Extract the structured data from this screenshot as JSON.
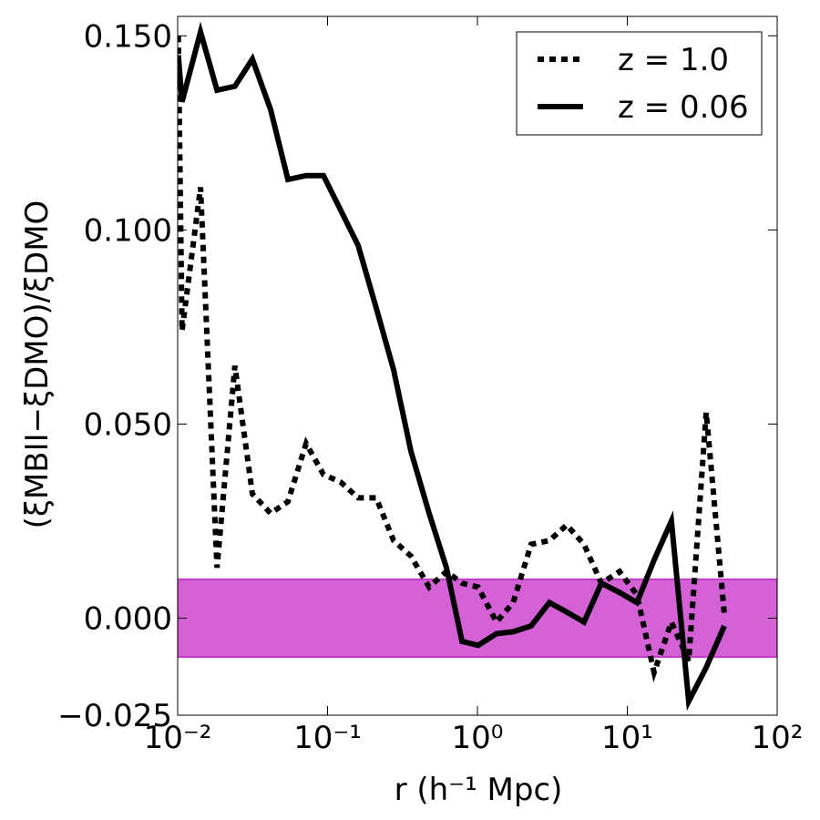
{
  "chart_data": {
    "type": "line",
    "xlabel": "r (h⁻¹ Mpc)",
    "ylabel": "(ξMBII−ξDMO)/ξDMO",
    "xscale": "log",
    "xlim": [
      0.01,
      100
    ],
    "ylim": [
      -0.025,
      0.155
    ],
    "xticks": [
      {
        "value": 0.01,
        "label": "10⁻²"
      },
      {
        "value": 0.1,
        "label": "10⁻¹"
      },
      {
        "value": 1,
        "label": "10⁰"
      },
      {
        "value": 10,
        "label": "10¹"
      },
      {
        "value": 100,
        "label": "10²"
      }
    ],
    "yticks": [
      {
        "value": -0.025,
        "label": "−0.025"
      },
      {
        "value": 0,
        "label": "0.000"
      },
      {
        "value": 0.05,
        "label": "0.050"
      },
      {
        "value": 0.1,
        "label": "0.100"
      },
      {
        "value": 0.15,
        "label": "0.150"
      }
    ],
    "legend": "upper right",
    "band": {
      "range": [
        -0.01,
        0.01
      ],
      "color": "#d462d6",
      "edge": "#c23cc8"
    },
    "x": [
      0.0101,
      0.0107,
      0.0142,
      0.0183,
      0.0241,
      0.0315,
      0.0417,
      0.0544,
      0.072,
      0.0939,
      0.1226,
      0.16,
      0.211,
      0.276,
      0.36,
      0.476,
      0.621,
      0.789,
      1.01,
      1.34,
      1.73,
      2.28,
      3.02,
      3.94,
      5.14,
      6.71,
      8.88,
      11.6,
      15.1,
      19.7,
      25.7,
      33.6,
      44.4
    ],
    "series": [
      {
        "name": "z = 1.0",
        "style": "dotted",
        "color": "#000000",
        "values": [
          0.15,
          0.074,
          0.111,
          0.013,
          0.065,
          0.032,
          0.027,
          0.03,
          0.045,
          0.037,
          0.035,
          0.031,
          0.031,
          0.02,
          0.016,
          0.008,
          0.012,
          0.009,
          0.008,
          -0.001,
          0.004,
          0.019,
          0.02,
          0.024,
          0.019,
          0.009,
          0.012,
          0.006,
          -0.014,
          -0.001,
          -0.011,
          0.053,
          0.001
        ]
      },
      {
        "name": "z = 0.06",
        "style": "solid",
        "color": "#000000",
        "values": [
          0.145,
          0.133,
          0.151,
          0.136,
          0.137,
          0.144,
          0.131,
          0.113,
          0.114,
          0.114,
          0.105,
          0.096,
          0.08,
          0.064,
          0.043,
          0.027,
          0.013,
          -0.006,
          -0.007,
          -0.004,
          -0.0035,
          -0.002,
          0.004,
          0.0016,
          -0.001,
          0.009,
          0.0066,
          0.004,
          0.015,
          0.025,
          -0.0214,
          -0.0127,
          -0.002
        ]
      }
    ]
  }
}
